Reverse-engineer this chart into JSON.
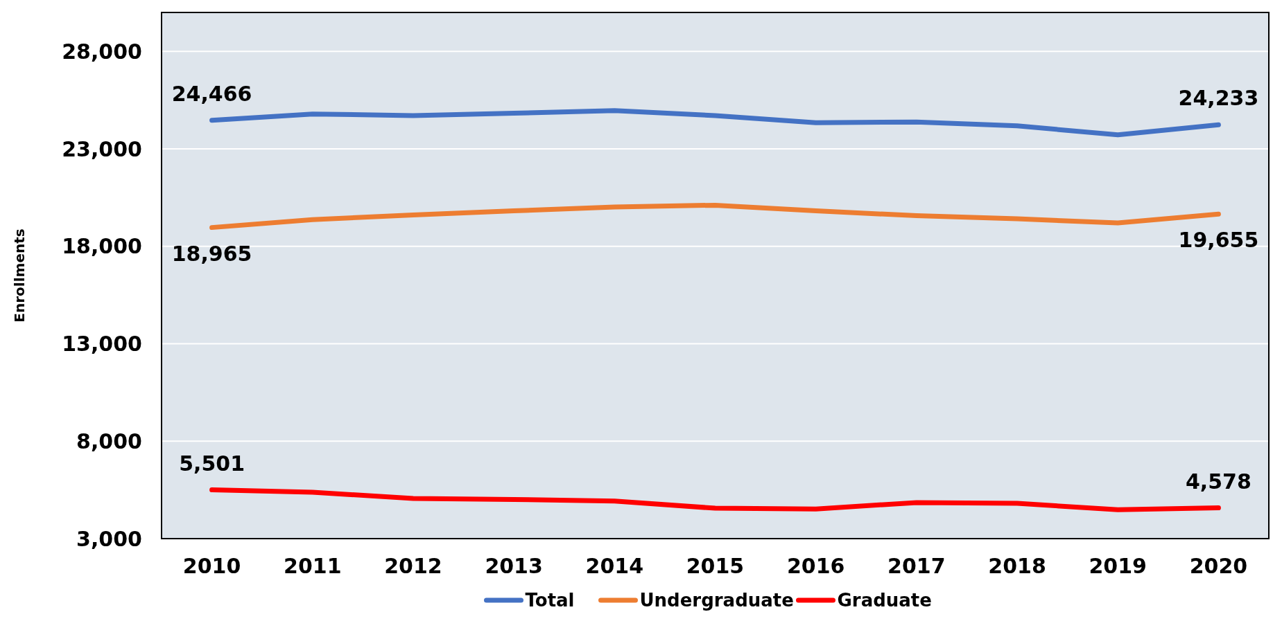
{
  "chart_data": {
    "type": "line",
    "ylabel": "Enrollments",
    "categories": [
      "2010",
      "2011",
      "2012",
      "2013",
      "2014",
      "2015",
      "2016",
      "2017",
      "2018",
      "2019",
      "2020"
    ],
    "series": [
      {
        "name": "Total",
        "color": "#4472c4",
        "values": [
          24466,
          24790,
          24710,
          24830,
          24960,
          24710,
          24340,
          24380,
          24180,
          23720,
          24233
        ],
        "value_labels": [
          "24,466",
          null,
          null,
          null,
          null,
          null,
          null,
          null,
          null,
          null,
          "24,233"
        ]
      },
      {
        "name": "Undergraduate",
        "color": "#ed7d31",
        "values": [
          18965,
          19370,
          19610,
          19820,
          20020,
          20110,
          19820,
          19570,
          19410,
          19200,
          19655
        ],
        "value_labels": [
          "18,965",
          null,
          null,
          null,
          null,
          null,
          null,
          null,
          null,
          null,
          "19,655"
        ]
      },
      {
        "name": "Graduate",
        "color": "#ff0000",
        "values": [
          5501,
          5380,
          5060,
          5010,
          4930,
          4560,
          4520,
          4850,
          4810,
          4480,
          4578
        ],
        "value_labels": [
          "5,501",
          null,
          null,
          null,
          null,
          null,
          null,
          null,
          null,
          null,
          "4,578"
        ]
      }
    ],
    "ylim": [
      3000,
      30000
    ],
    "yticks": [
      {
        "value": 3000,
        "label": "3,000"
      },
      {
        "value": 8000,
        "label": "8,000"
      },
      {
        "value": 13000,
        "label": "13,000"
      },
      {
        "value": 18000,
        "label": "18,000"
      },
      {
        "value": 23000,
        "label": "23,000"
      },
      {
        "value": 28000,
        "label": "28,000"
      }
    ],
    "grid": "y",
    "legend": "bottom",
    "marker": "none",
    "line_style": "solid"
  }
}
